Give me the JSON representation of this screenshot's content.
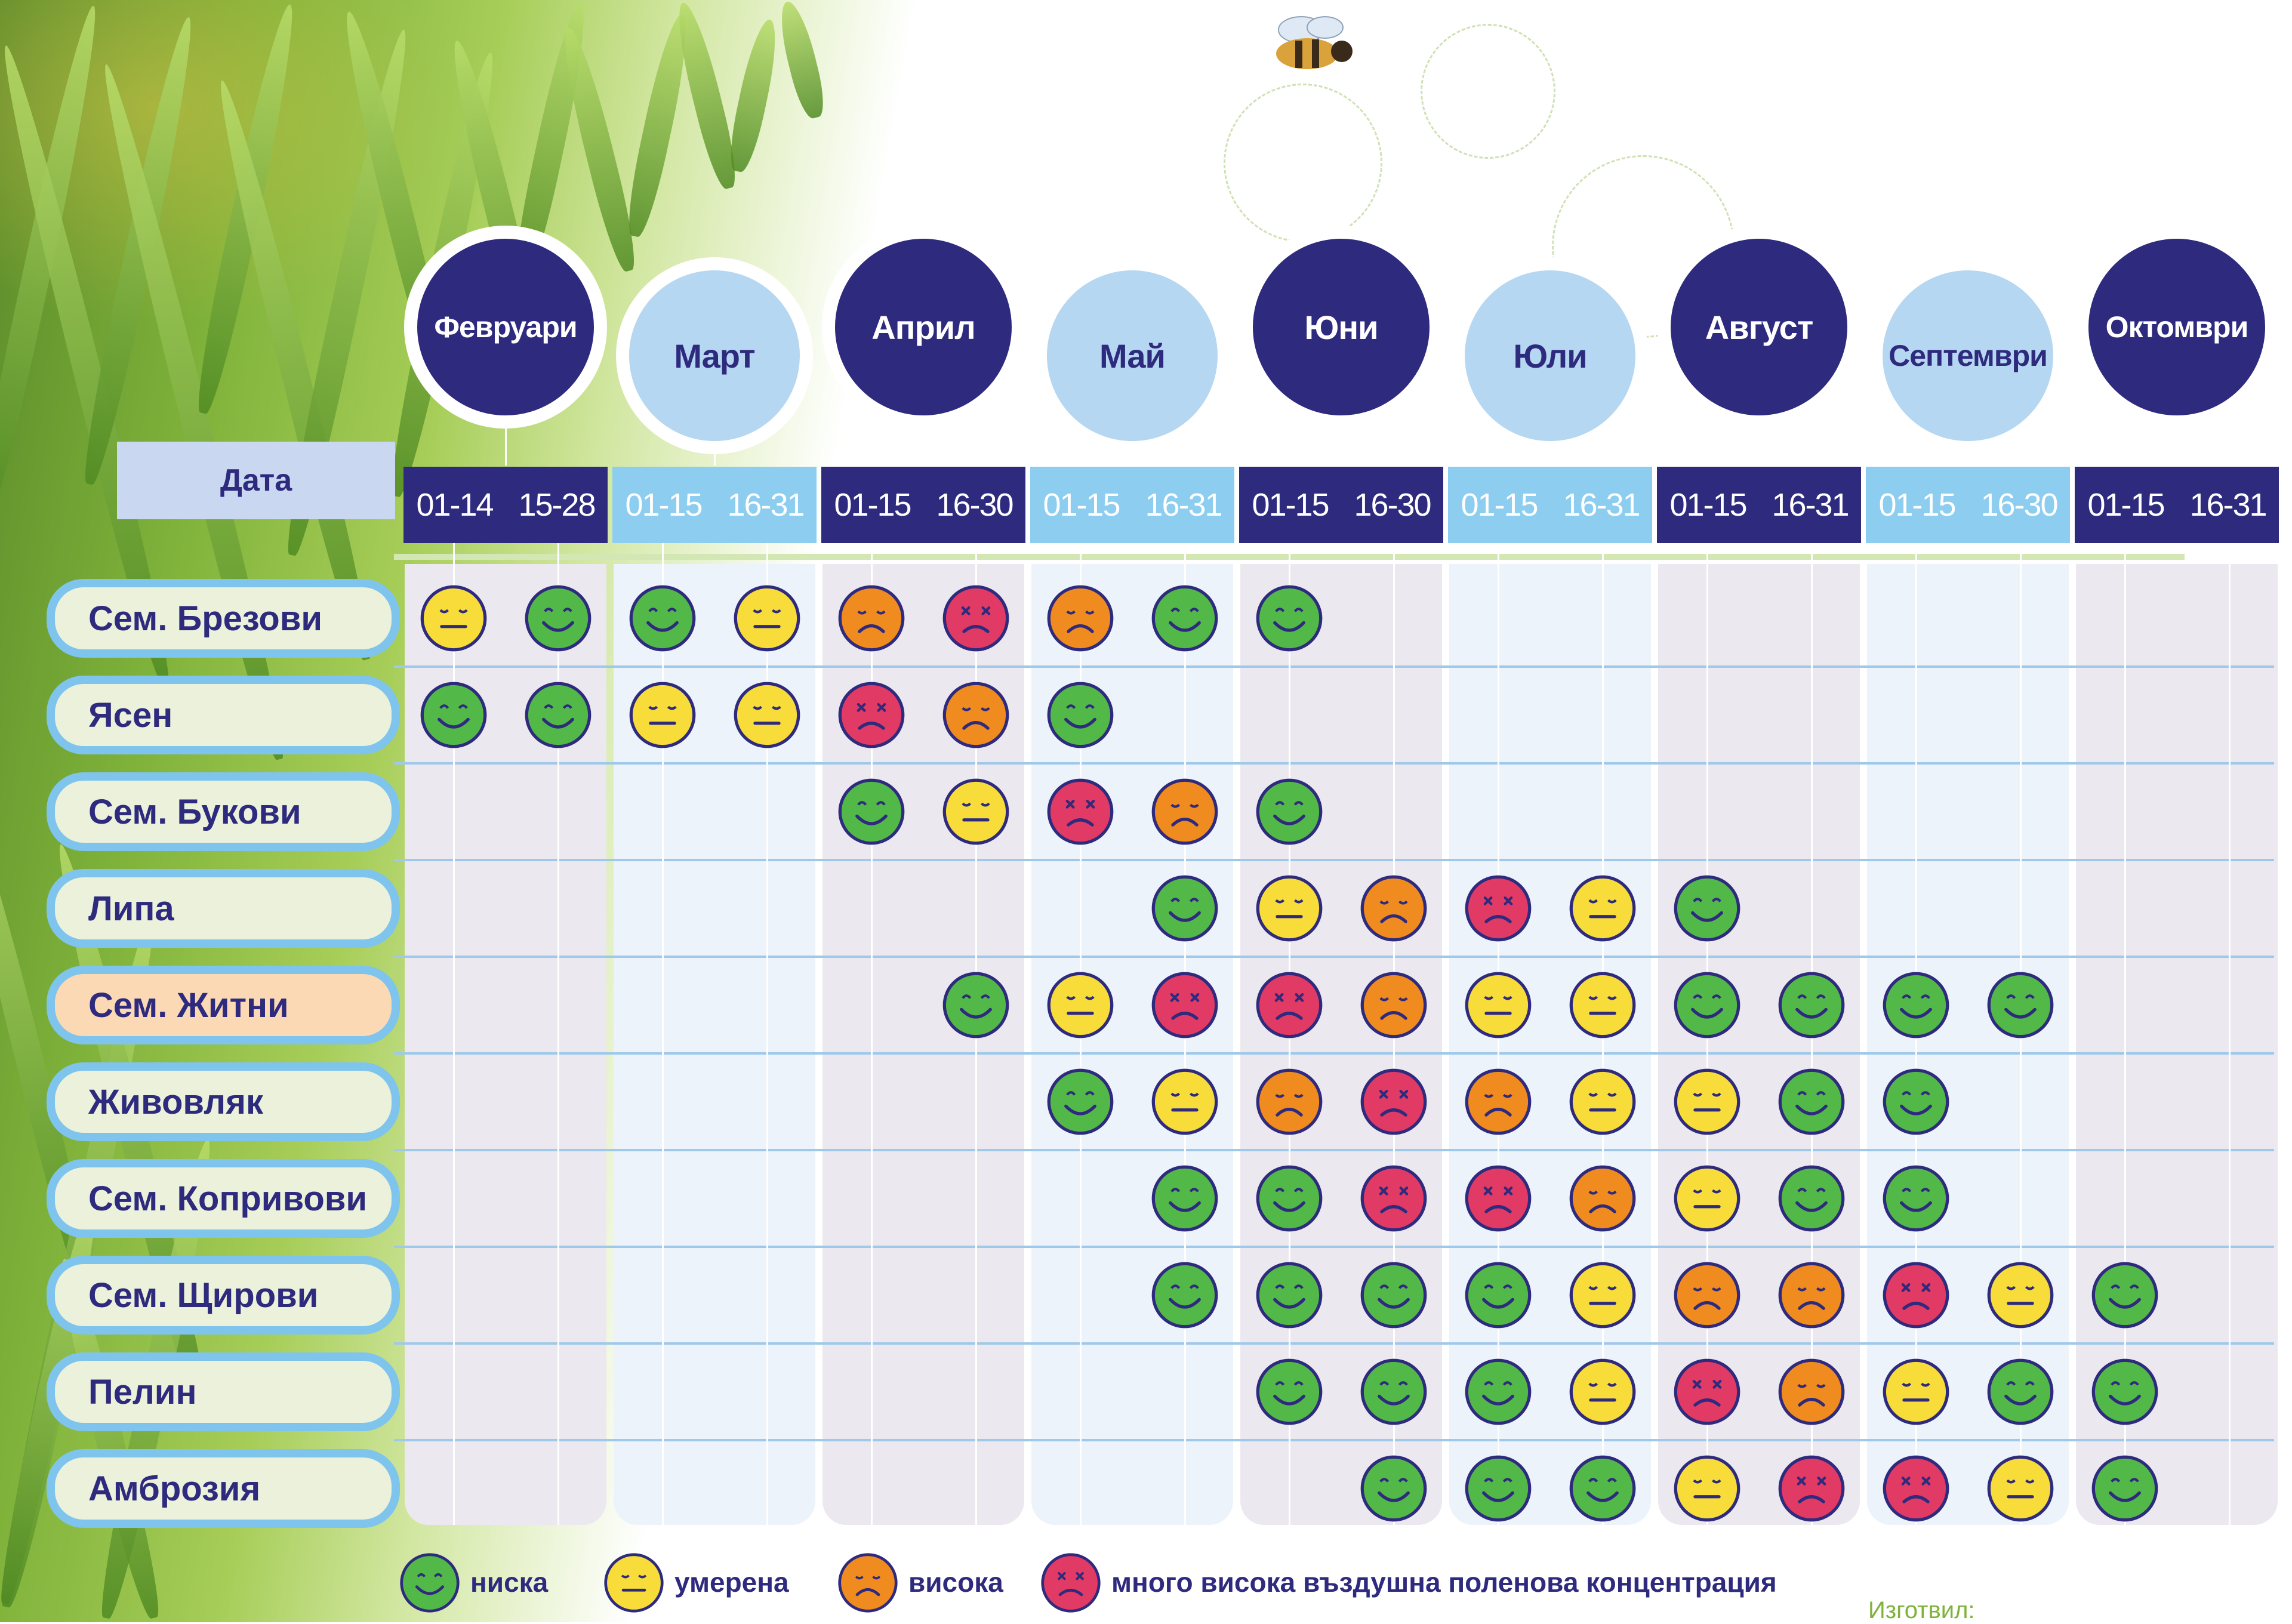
{
  "colors": {
    "dark_month": "#2e2a7d",
    "light_month": "#b5d7f1",
    "period_dark": "#2e2a7d",
    "period_light": "#8ccdf0",
    "low": "#52b848",
    "moderate": "#f7dc3a",
    "high": "#ef8b1f",
    "very_high": "#e13a64",
    "outline": "#2e2a7d"
  },
  "header": {
    "date_label": "Дата"
  },
  "months": [
    {
      "name": "Февруари",
      "shade": "dark",
      "periods": [
        "01-14",
        "15-28"
      ]
    },
    {
      "name": "Март",
      "shade": "light",
      "periods": [
        "01-15",
        "16-31"
      ]
    },
    {
      "name": "Април",
      "shade": "dark",
      "periods": [
        "01-15",
        "16-30"
      ]
    },
    {
      "name": "Май",
      "shade": "light",
      "periods": [
        "01-15",
        "16-31"
      ]
    },
    {
      "name": "Юни",
      "shade": "dark",
      "periods": [
        "01-15",
        "16-30"
      ]
    },
    {
      "name": "Юли",
      "shade": "light",
      "periods": [
        "01-15",
        "16-31"
      ]
    },
    {
      "name": "Август",
      "shade": "dark",
      "periods": [
        "01-15",
        "16-31"
      ]
    },
    {
      "name": "Септември",
      "shade": "light",
      "periods": [
        "01-15",
        "16-30"
      ]
    },
    {
      "name": "Октомври",
      "shade": "dark",
      "periods": [
        "01-15",
        "16-31"
      ]
    }
  ],
  "rows": [
    {
      "plant": "Сем. Брезови",
      "highlight": false,
      "levels": [
        "moderate",
        "low",
        "low",
        "moderate",
        "high",
        "very_high",
        "high",
        "low",
        "low",
        null,
        null,
        null,
        null,
        null,
        null,
        null,
        null,
        null
      ]
    },
    {
      "plant": "Ясен",
      "highlight": false,
      "levels": [
        "low",
        "low",
        "moderate",
        "moderate",
        "very_high",
        "high",
        "low",
        null,
        null,
        null,
        null,
        null,
        null,
        null,
        null,
        null,
        null,
        null
      ]
    },
    {
      "plant": "Сем. Букови",
      "highlight": false,
      "levels": [
        null,
        null,
        null,
        null,
        "low",
        "moderate",
        "very_high",
        "high",
        "low",
        null,
        null,
        null,
        null,
        null,
        null,
        null,
        null,
        null
      ]
    },
    {
      "plant": "Липа",
      "highlight": false,
      "levels": [
        null,
        null,
        null,
        null,
        null,
        null,
        null,
        "low",
        "moderate",
        "high",
        "very_high",
        "moderate",
        "low",
        null,
        null,
        null,
        null,
        null
      ]
    },
    {
      "plant": "Сем. Житни",
      "highlight": true,
      "levels": [
        null,
        null,
        null,
        null,
        null,
        "low",
        "moderate",
        "very_high",
        "very_high",
        "high",
        "moderate",
        "moderate",
        "low",
        "low",
        "low",
        "low",
        null,
        null
      ]
    },
    {
      "plant": "Живовляк",
      "highlight": false,
      "levels": [
        null,
        null,
        null,
        null,
        null,
        null,
        "low",
        "moderate",
        "high",
        "very_high",
        "high",
        "moderate",
        "moderate",
        "low",
        "low",
        null,
        null,
        null
      ]
    },
    {
      "plant": "Сем. Копривови",
      "highlight": false,
      "levels": [
        null,
        null,
        null,
        null,
        null,
        null,
        null,
        "low",
        "low",
        "very_high",
        "very_high",
        "high",
        "moderate",
        "low",
        "low",
        null,
        null,
        null
      ]
    },
    {
      "plant": "Сем. Щирови",
      "highlight": false,
      "levels": [
        null,
        null,
        null,
        null,
        null,
        null,
        null,
        "low",
        "low",
        "low",
        "low",
        "moderate",
        "high",
        "high",
        "very_high",
        "moderate",
        "low",
        null
      ]
    },
    {
      "plant": "Пелин",
      "highlight": false,
      "levels": [
        null,
        null,
        null,
        null,
        null,
        null,
        null,
        null,
        "low",
        "low",
        "low",
        "moderate",
        "very_high",
        "high",
        "moderate",
        "low",
        "low",
        null
      ]
    },
    {
      "plant": "Амброзия",
      "highlight": false,
      "levels": [
        null,
        null,
        null,
        null,
        null,
        null,
        null,
        null,
        null,
        "low",
        "low",
        "low",
        "moderate",
        "very_high",
        "very_high",
        "moderate",
        "low",
        null
      ]
    }
  ],
  "legend": [
    {
      "level": "low",
      "label": "ниска"
    },
    {
      "level": "moderate",
      "label": "умерена"
    },
    {
      "level": "high",
      "label": "висока"
    },
    {
      "level": "very_high",
      "label": "много висока въздушна поленова концентрация"
    }
  ],
  "footer": {
    "credit": "Изготвил:"
  }
}
